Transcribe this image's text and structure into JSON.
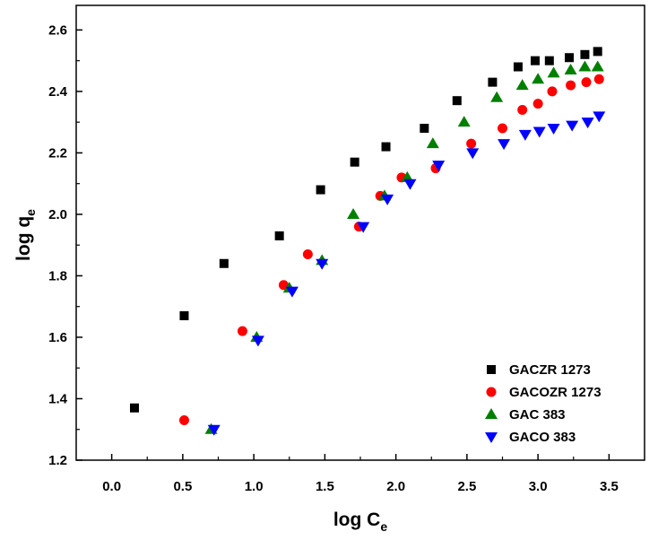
{
  "chart_data": {
    "type": "scatter",
    "title": "",
    "xlabel": "log C",
    "xlabel_sub": "e",
    "ylabel": "log q",
    "ylabel_sub": "e",
    "xlim": [
      -0.25,
      3.75
    ],
    "ylim": [
      1.2,
      2.68
    ],
    "xticks": [
      0.0,
      0.5,
      1.0,
      1.5,
      2.0,
      2.5,
      3.0,
      3.5
    ],
    "xtick_labels": [
      "0.0",
      "0.5",
      "1.0",
      "1.5",
      "2.0",
      "2.5",
      "3.0",
      "3.5"
    ],
    "yticks": [
      1.2,
      1.4,
      1.6,
      1.8,
      2.0,
      2.2,
      2.4,
      2.6
    ],
    "ytick_labels": [
      "1.2",
      "1.4",
      "1.6",
      "1.8",
      "2.0",
      "2.2",
      "2.4",
      "2.6"
    ],
    "grid": false,
    "legend_position": "bottom-right",
    "series": [
      {
        "name": "GACZR 1273",
        "marker": "square",
        "color": "#000000",
        "x": [
          0.16,
          0.51,
          0.79,
          1.18,
          1.47,
          1.71,
          1.93,
          2.2,
          2.43,
          2.68,
          2.86,
          2.98,
          3.08,
          3.22,
          3.33,
          3.42
        ],
        "y": [
          1.37,
          1.67,
          1.84,
          1.93,
          2.08,
          2.17,
          2.22,
          2.28,
          2.37,
          2.43,
          2.48,
          2.5,
          2.5,
          2.51,
          2.52,
          2.53
        ]
      },
      {
        "name": "GACOZR 1273",
        "marker": "circle",
        "color": "#ff0000",
        "x": [
          0.51,
          0.92,
          1.21,
          1.38,
          1.74,
          1.89,
          2.04,
          2.28,
          2.53,
          2.75,
          2.89,
          3.0,
          3.1,
          3.23,
          3.34,
          3.43
        ],
        "y": [
          1.33,
          1.62,
          1.77,
          1.87,
          1.96,
          2.06,
          2.12,
          2.15,
          2.23,
          2.28,
          2.34,
          2.36,
          2.4,
          2.42,
          2.43,
          2.44
        ]
      },
      {
        "name": "GAC 383",
        "marker": "triangle-up",
        "color": "#008000",
        "x": [
          0.7,
          1.02,
          1.25,
          1.48,
          1.7,
          1.92,
          2.08,
          2.26,
          2.48,
          2.71,
          2.89,
          3.0,
          3.11,
          3.23,
          3.33,
          3.42
        ],
        "y": [
          1.3,
          1.6,
          1.76,
          1.85,
          2.0,
          2.06,
          2.12,
          2.23,
          2.3,
          2.38,
          2.42,
          2.44,
          2.46,
          2.47,
          2.48,
          2.48
        ]
      },
      {
        "name": "GACO 383",
        "marker": "triangle-down",
        "color": "#0000ff",
        "x": [
          0.72,
          1.03,
          1.27,
          1.48,
          1.77,
          1.94,
          2.1,
          2.3,
          2.54,
          2.76,
          2.91,
          3.01,
          3.11,
          3.24,
          3.35,
          3.43
        ],
        "y": [
          1.3,
          1.59,
          1.75,
          1.84,
          1.96,
          2.05,
          2.1,
          2.16,
          2.2,
          2.23,
          2.26,
          2.27,
          2.28,
          2.29,
          2.3,
          2.32
        ]
      }
    ]
  }
}
